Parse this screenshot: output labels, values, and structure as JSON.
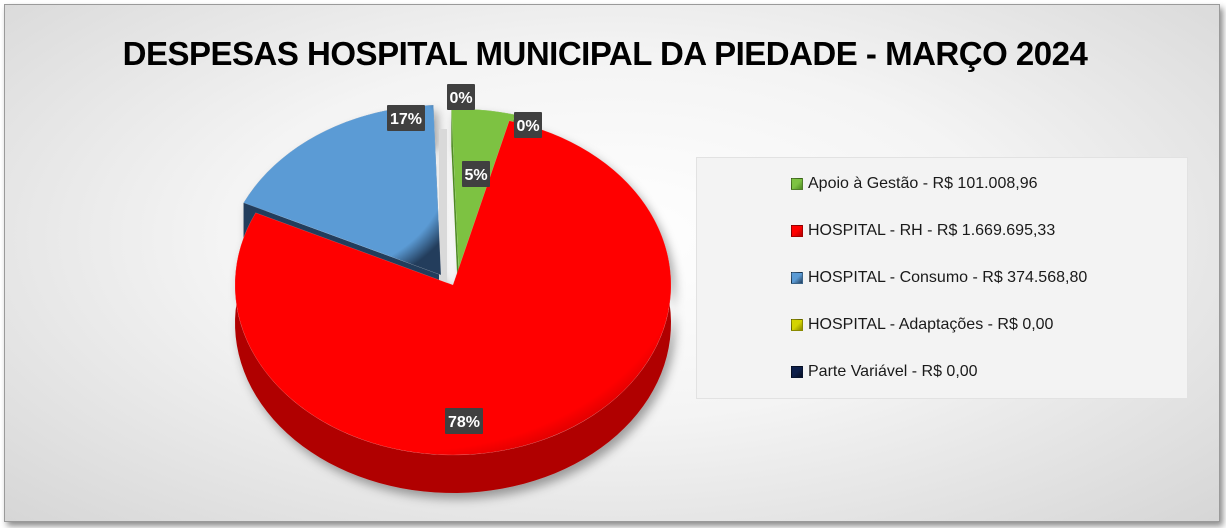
{
  "chart_data": {
    "type": "pie",
    "title": "DESPESAS HOSPITAL MUNICIPAL DA PIEDADE - MARÇO 2024",
    "slices": [
      {
        "name": "Apoio à Gestão - R$ 101.008,96",
        "value": 101008.96,
        "label": "5%",
        "color": "#7dc242",
        "dark": "#4e8a22"
      },
      {
        "name": "HOSPITAL - RH - R$ 1.669.695,33",
        "value": 1669695.33,
        "label": "78%",
        "color": "#ff0000",
        "dark": "#b00000"
      },
      {
        "name": "HOSPITAL - Consumo - R$ 374.568,80",
        "value": 374568.8,
        "label": "17%",
        "color": "#5b9bd5",
        "dark": "#233d5c"
      },
      {
        "name": "HOSPITAL - Adaptações - R$ 0,00",
        "value": 0,
        "label": "0%",
        "color": "#d4d400",
        "dark": "#8a8a00"
      },
      {
        "name": "Parte Variável - R$ 0,00",
        "value": 0,
        "label": "0%",
        "color": "#0d1f4a",
        "dark": "#050c20"
      }
    ],
    "legend_position": "right"
  }
}
